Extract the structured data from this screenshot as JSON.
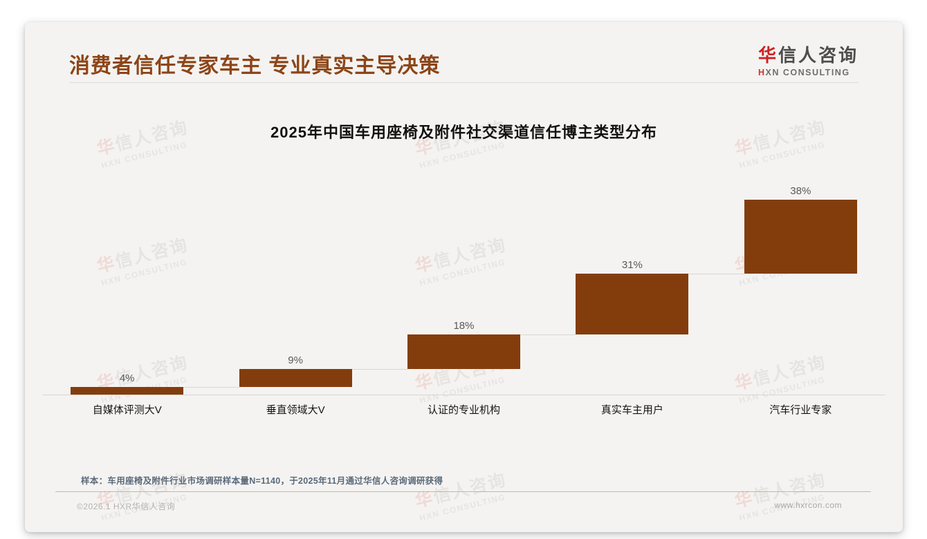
{
  "header": {
    "title": "消费者信任专家车主 专业真实主导决策"
  },
  "brand": {
    "logo_cn_first": "华",
    "logo_cn_rest": "信人咨询",
    "logo_en_first": "H",
    "logo_en_rest": "XN CONSULTING"
  },
  "watermark": {
    "cn_first": "华",
    "cn_rest": "信人咨询",
    "en": "HXN CONSULTING"
  },
  "chart_data": {
    "type": "bar",
    "variant": "waterfall",
    "title": "2025年中国车用座椅及附件社交渠道信任博主类型分布",
    "categories": [
      "自媒体评测大V",
      "垂直领域大V",
      "认证的专业机构",
      "真实车主用户",
      "汽车行业专家"
    ],
    "values": [
      4,
      9,
      18,
      31,
      38
    ],
    "value_labels": [
      "4%",
      "9%",
      "18%",
      "31%",
      "38%"
    ],
    "cumulative": [
      4,
      13,
      31,
      62,
      100
    ],
    "unit": "%",
    "ylim": [
      0,
      100
    ],
    "bar_color": "#833d0d",
    "connector_color": "#d9d7d4",
    "grid": false,
    "legend": false
  },
  "footer": {
    "sample_note": "样本：车用座椅及附件行业市场调研样本量N=1140，于2025年11月通过华信人咨询调研获得",
    "copyright": "©2026.1 HXR华信人咨询",
    "website": "www.hxrcon.com"
  },
  "colors": {
    "title_brown": "#8d4517",
    "bar_brown": "#833d0d",
    "accent_red": "#cc2222",
    "note_slate": "#5a6a7a"
  }
}
